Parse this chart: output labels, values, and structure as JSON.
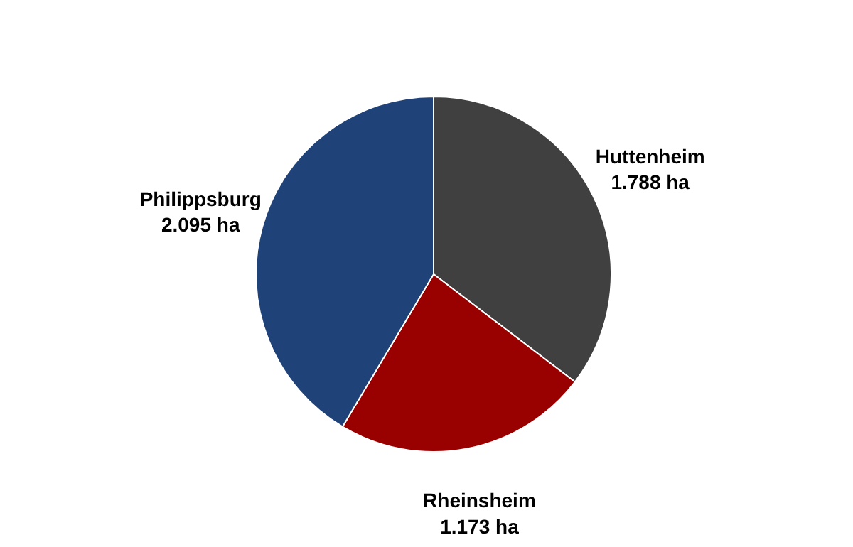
{
  "chart_data": {
    "type": "pie",
    "categories": [
      "Huttenheim",
      "Rheinsheim",
      "Philippsburg"
    ],
    "values": [
      1788,
      1173,
      2095
    ],
    "value_labels": [
      "1.788 ha",
      "1.173 ha",
      "2.095 ha"
    ],
    "colors": [
      "#404040",
      "#990000",
      "#1f4379"
    ]
  }
}
